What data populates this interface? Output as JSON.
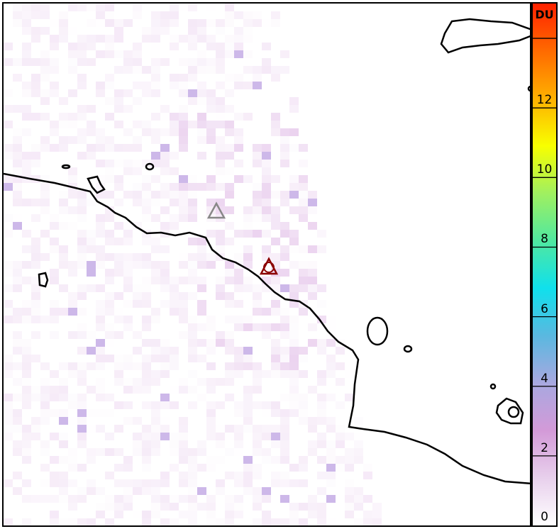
{
  "colorbar": {
    "unit": "DU",
    "ticks": [
      "0",
      "2",
      "4",
      "6",
      "8",
      "10",
      "12"
    ],
    "min": 0,
    "max": 15,
    "colors": [
      "#ffffff",
      "#e8d0ec",
      "#d39ad8",
      "#a8a8e0",
      "#5ab8e0",
      "#10e0ec",
      "#50e8a0",
      "#a0f060",
      "#f8ff00",
      "#ffb000",
      "#ff6a00",
      "#ff2200"
    ]
  },
  "markers": [
    {
      "name": "reference-volcano",
      "color": "#888888"
    },
    {
      "name": "target-volcano",
      "color": "#8b0000"
    }
  ]
}
